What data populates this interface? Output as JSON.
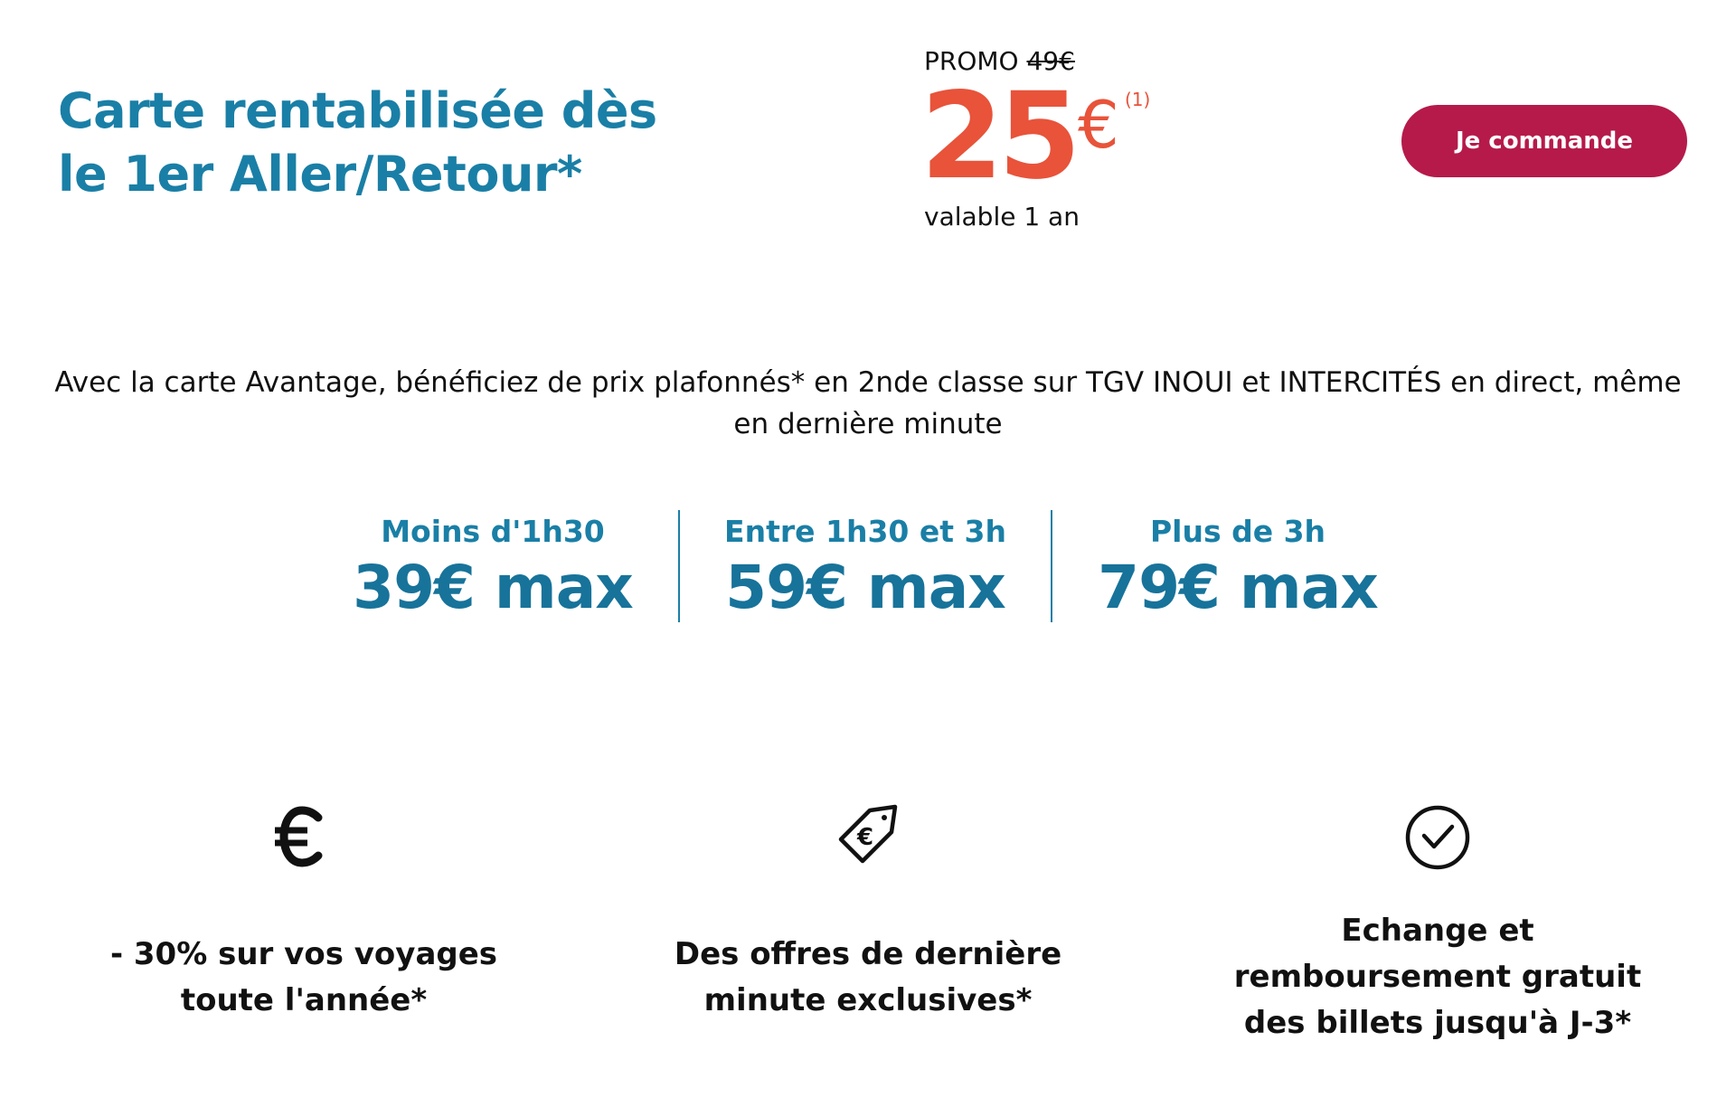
{
  "header": {
    "headline": "Carte rentabilisée dès le 1er Aller/Retour*"
  },
  "promo": {
    "label": "PROMO",
    "old_price": "49€",
    "price": "25",
    "currency": "€",
    "note_ref": "(1)",
    "validity": "valable 1 an"
  },
  "cta": {
    "label": "Je commande"
  },
  "description": "Avec la carte Avantage, bénéficiez de prix plafonnés* en 2nde classe sur TGV INOUI et INTERCITÉS en direct, même en dernière minute",
  "price_caps": [
    {
      "label": "Moins d'1h30",
      "value": "39€ max"
    },
    {
      "label": "Entre 1h30 et 3h",
      "value": "59€ max"
    },
    {
      "label": "Plus de 3h",
      "value": "79€ max"
    }
  ],
  "advantages": [
    {
      "icon": "euro-icon",
      "text": "- 30% sur vos voyages\ntoute l'année*"
    },
    {
      "icon": "price-tag-icon",
      "text": "Des offres de dernière\nminute exclusives*"
    },
    {
      "icon": "clock-check-icon",
      "text": "Echange et\nremboursement gratuit\ndes billets jusqu'à J-3*"
    }
  ],
  "colors": {
    "brand_blue": "#1a7fa6",
    "promo_orange": "#e8533a",
    "button_red": "#b51a4a"
  }
}
